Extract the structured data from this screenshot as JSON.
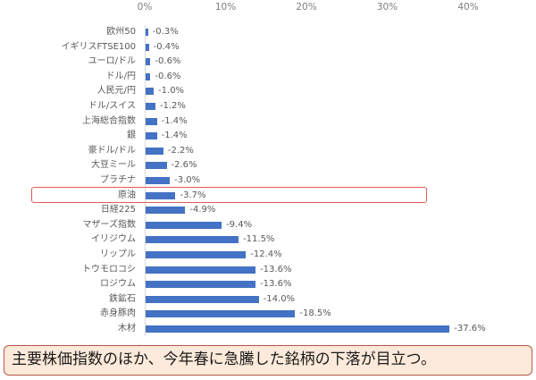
{
  "chart_data": {
    "type": "bar",
    "orientation": "horizontal",
    "title": "",
    "xlabel": "",
    "ylabel": "",
    "xlim": [
      0,
      40
    ],
    "x_ticks": [
      "0%",
      "10%",
      "20%",
      "30%",
      "40%"
    ],
    "x_tick_values": [
      0,
      10,
      20,
      30,
      40
    ],
    "grid": false,
    "legend": null,
    "bar_color": "#4472c4",
    "categories": [
      "欧州50",
      "イギリスFTSE100",
      "ユーロ/ドル",
      "ドル/円",
      "人民元/円",
      "ドル/スイス",
      "上海総合指数",
      "銀",
      "豪ドル/ドル",
      "大豆ミール",
      "プラチナ",
      "原油",
      "日経225",
      "マザーズ指数",
      "イリジウム",
      "リップル",
      "トウモロコシ",
      "ロジウム",
      "鉄鉱石",
      "赤身豚肉",
      "木材"
    ],
    "values": [
      -0.3,
      -0.4,
      -0.6,
      -0.6,
      -1.0,
      -1.2,
      -1.4,
      -1.4,
      -2.2,
      -2.6,
      -3.0,
      -3.7,
      -4.9,
      -9.4,
      -11.5,
      -12.4,
      -13.6,
      -13.6,
      -14.0,
      -18.5,
      -37.6
    ],
    "value_labels": [
      "-0.3%",
      "-0.4%",
      "-0.6%",
      "-0.6%",
      "-1.0%",
      "-1.2%",
      "-1.4%",
      "-1.4%",
      "-2.2%",
      "-2.6%",
      "-3.0%",
      "-3.7%",
      "-4.9%",
      "-9.4%",
      "-11.5%",
      "-12.4%",
      "-13.6%",
      "-13.6%",
      "-14.0%",
      "-18.5%",
      "-37.6%"
    ],
    "bar_length_basis": "absolute value",
    "annotations": [
      {
        "type": "highlight-box",
        "target": "原油",
        "color": "#e05a5a"
      }
    ]
  },
  "callout": {
    "text": "主要株価指数のほか、今年春に急騰した銘柄の下落が目立つ。",
    "fill": "#fdeada",
    "border": "#b7574a"
  }
}
